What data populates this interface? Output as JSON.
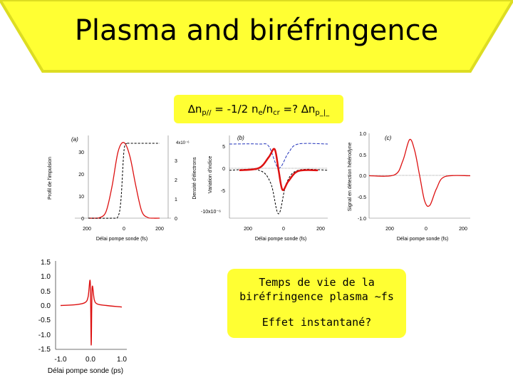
{
  "title": "Plasma and biréfringence",
  "formula": {
    "delta": "∆",
    "n1": "n",
    "sub1": "p//",
    "mid": " = -1/2 n",
    "sub2": "e",
    "slash": "/n",
    "sub3": "cr",
    "eq": " =? ",
    "delta2": "∆",
    "n2": "n",
    "sub4": "p_|_"
  },
  "note": {
    "line1": "Temps de vie de la",
    "line2": "biréfringence plasma ~fs",
    "line3": "Effet instantané?"
  },
  "chart_data": [
    {
      "type": "line",
      "panel_label": "(a)",
      "xlabel": "Délai pompe sonde (fs)",
      "ylabel": "Profil de l'impulsion",
      "ylabel2": "Densité d'électrons",
      "y2_scale": "4x10⁻⁶",
      "xticks": [
        "200",
        "0",
        "200"
      ],
      "yticks": [
        "0",
        "10",
        "20",
        "30"
      ],
      "y2ticks": [
        "0",
        "1",
        "2",
        "3"
      ],
      "series": [
        {
          "style": "red-solid",
          "x": [
            -300,
            -250,
            -200,
            -150,
            -100,
            -50,
            0,
            50,
            100,
            150,
            200,
            250,
            300
          ],
          "y": [
            0,
            0,
            0.3,
            3,
            14,
            29,
            33,
            27,
            14,
            3,
            0.3,
            0,
            0
          ]
        },
        {
          "style": "black-dashed",
          "x": [
            -300,
            -100,
            -50,
            -25,
            0,
            25,
            50,
            300
          ],
          "y": [
            0,
            0,
            0.1,
            1,
            3.6,
            4,
            4,
            4
          ]
        }
      ]
    },
    {
      "type": "line",
      "panel_label": "(b)",
      "xlabel": "Délai pompe sonde (fs)",
      "ylabel": "Variation d'indice",
      "y_scale": "-10x10⁻⁶",
      "xticks": [
        "200",
        "0",
        "200"
      ],
      "yticks": [
        "5",
        "0",
        "-5"
      ],
      "series": [
        {
          "style": "red-solid",
          "x": [
            -200,
            -100,
            -50,
            -20,
            0,
            20,
            50,
            100,
            200
          ],
          "y": [
            0,
            0.5,
            3,
            4.8,
            0,
            -4.5,
            -2.5,
            -0.2,
            0
          ]
        },
        {
          "style": "blue-dashed",
          "x": [
            -250,
            -100,
            -50,
            0,
            50,
            100,
            250
          ],
          "y": [
            6,
            6,
            5.5,
            0.5,
            4,
            6,
            6
          ]
        },
        {
          "style": "black-dashed",
          "x": [
            -250,
            -100,
            -40,
            0,
            40,
            100,
            250
          ],
          "y": [
            0,
            0,
            -3,
            -10,
            -3,
            0,
            0
          ]
        }
      ]
    },
    {
      "type": "line",
      "panel_label": "(c)",
      "xlabel": "Délai pompe sonde (fs)",
      "ylabel": "Signal en détection hétérodyne",
      "xticks": [
        "200",
        "0",
        "200"
      ],
      "yticks": [
        "1.0",
        "0.5",
        "0.0",
        "-0.5",
        "-1.0"
      ],
      "series": [
        {
          "style": "red-solid",
          "x": [
            -300,
            -150,
            -100,
            -60,
            -30,
            0,
            30,
            60,
            100,
            150,
            300
          ],
          "y": [
            0,
            0.02,
            0.35,
            0.85,
            0.6,
            0,
            -0.6,
            -0.7,
            -0.3,
            -0.02,
            0
          ]
        }
      ]
    },
    {
      "type": "line",
      "xlabel": "Délai pompe sonde (ps)",
      "xticks": [
        "-1.0",
        "0.0",
        "1.0"
      ],
      "yticks": [
        "1.5",
        "1.0",
        "0.5",
        "0.0",
        "-0.5",
        "-1.0",
        "-1.5"
      ],
      "xlim": [
        -1.0,
        1.0
      ],
      "ylim": [
        -1.5,
        1.5
      ],
      "series": [
        {
          "style": "red-solid",
          "x": [
            -1.0,
            -0.5,
            -0.2,
            -0.1,
            -0.03,
            0,
            0.03,
            0.1,
            0.2,
            0.5,
            1.0
          ],
          "y": [
            0.0,
            0.03,
            0.1,
            0.3,
            0.8,
            -1.35,
            0.6,
            0.2,
            0.05,
            0.0,
            -0.05
          ]
        }
      ]
    }
  ]
}
